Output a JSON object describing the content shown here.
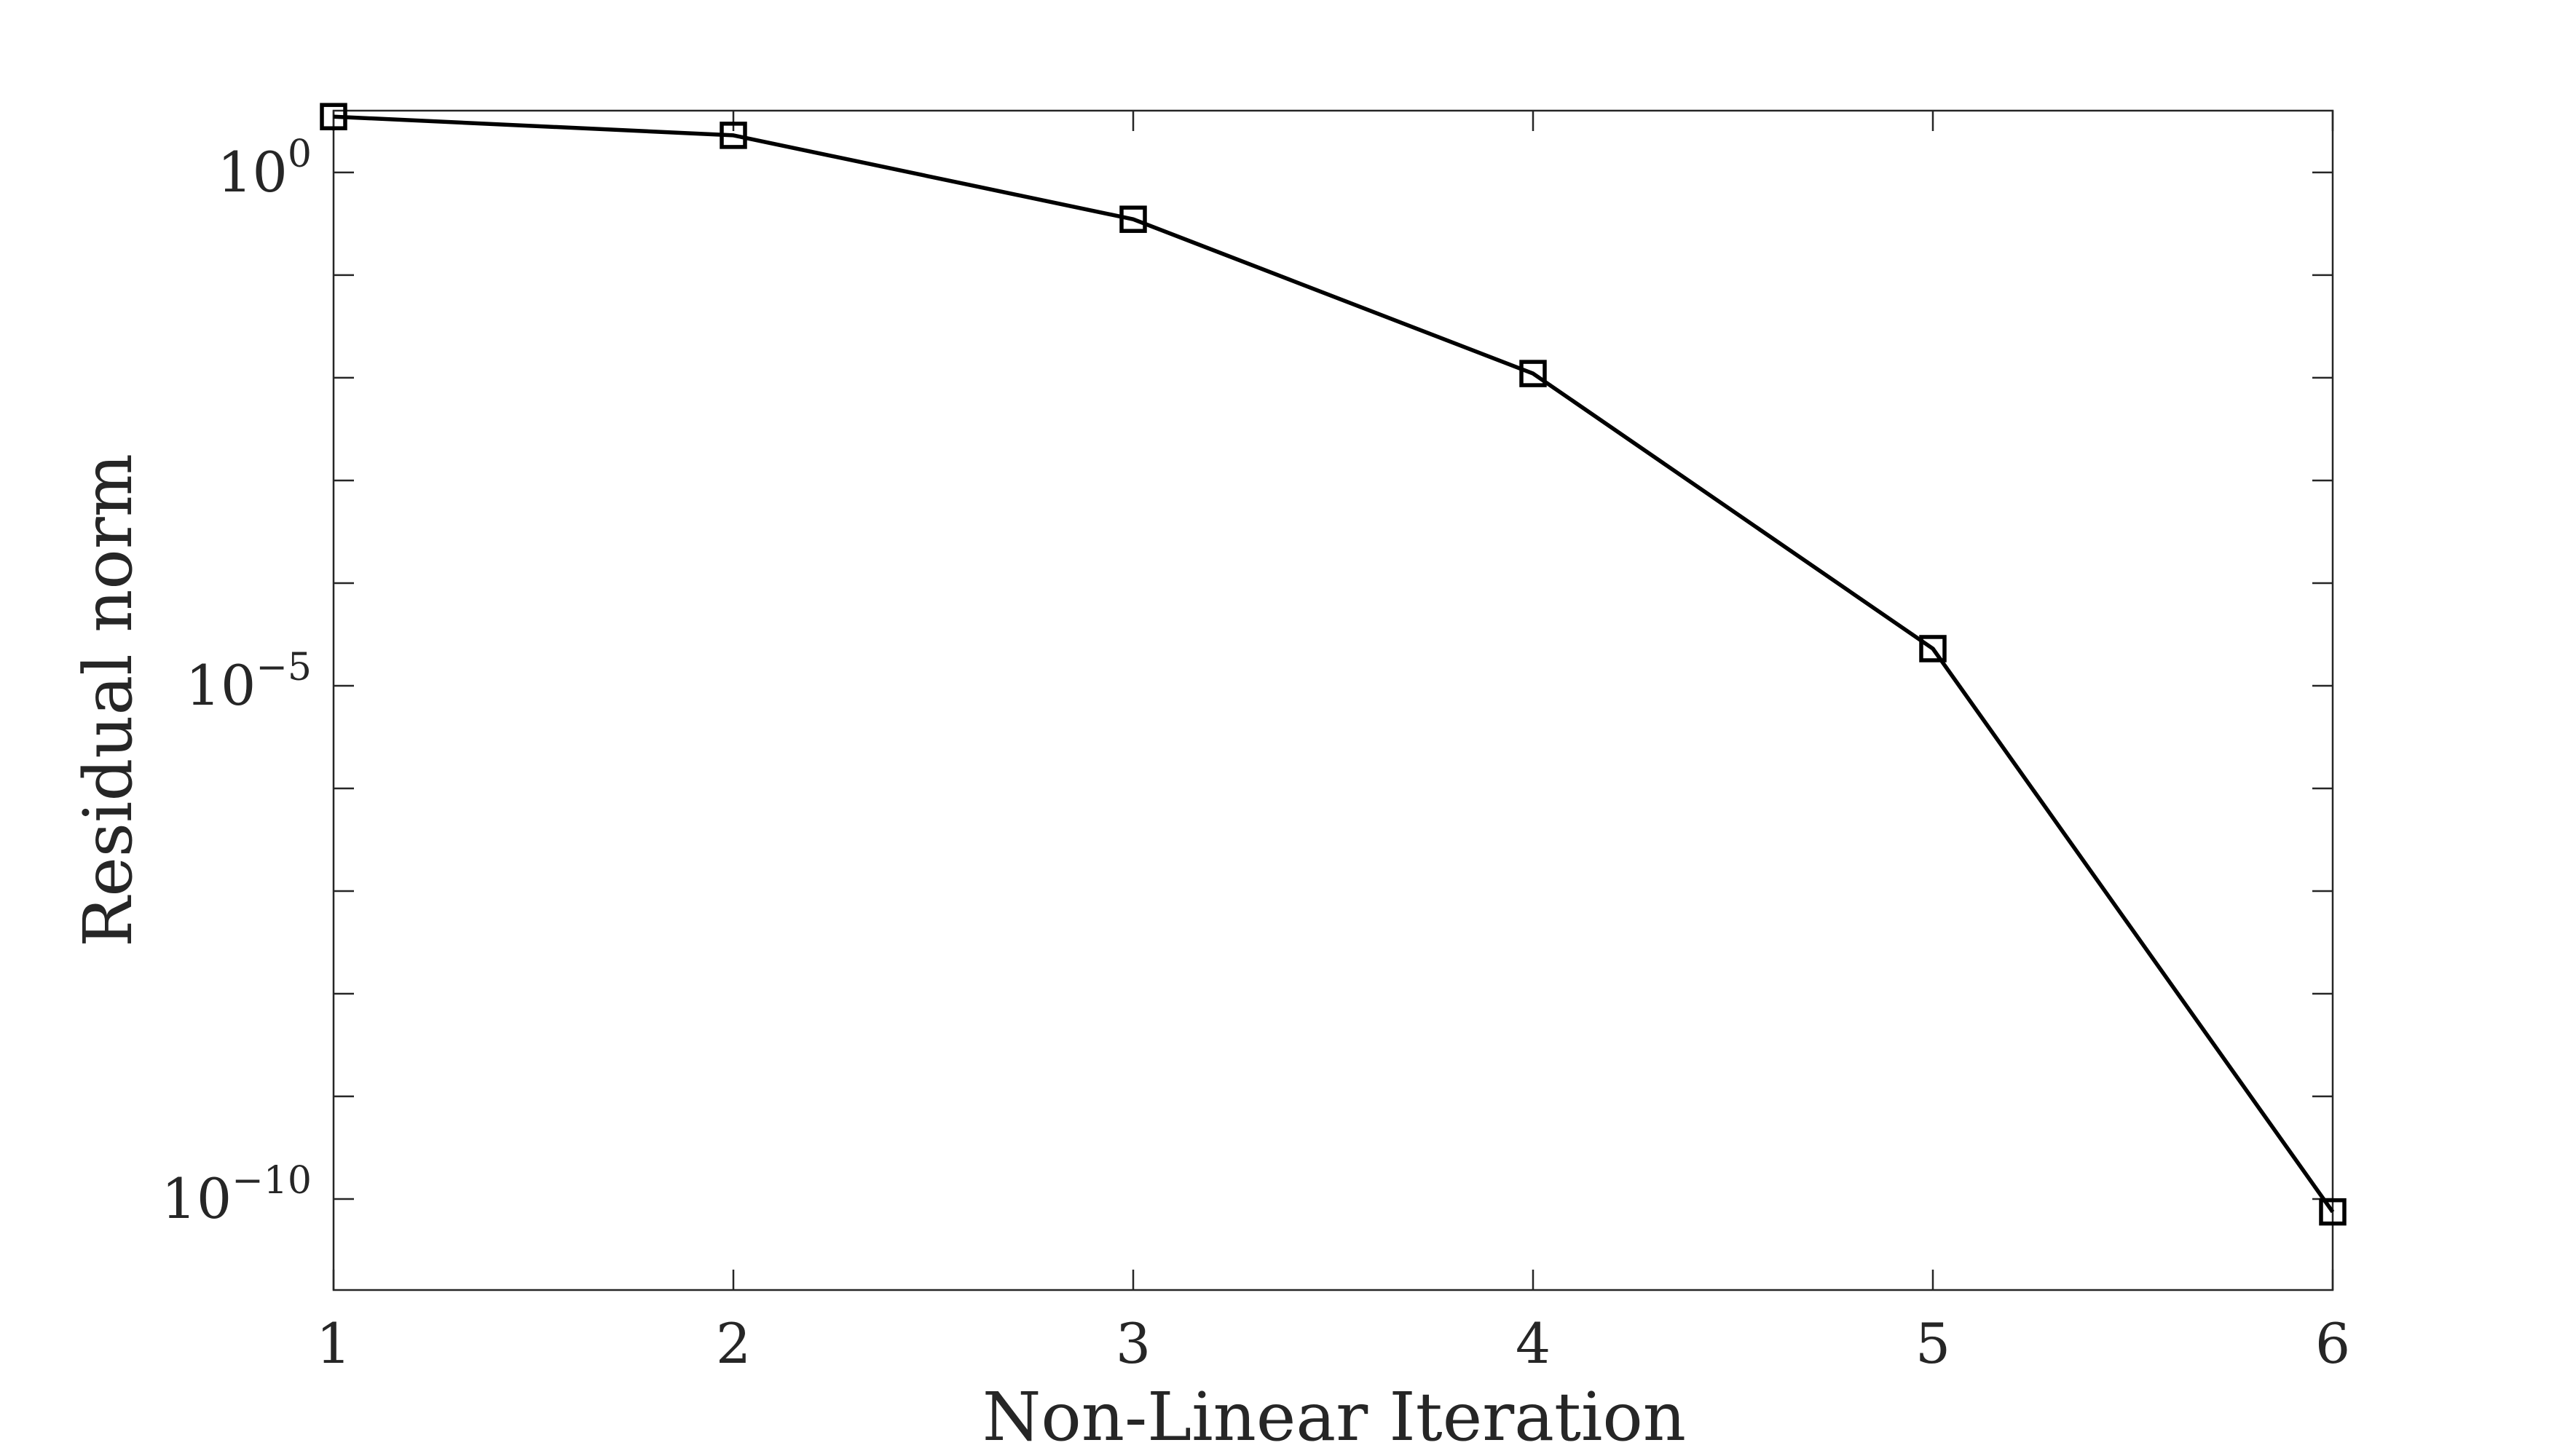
{
  "chart_data": {
    "type": "line",
    "title": "",
    "xlabel": "Non-Linear Iteration",
    "ylabel": "Residual norm",
    "y_scale": "log",
    "x": [
      1,
      2,
      3,
      4,
      5,
      6
    ],
    "xlim": [
      1,
      6
    ],
    "ylim": [
      1.3e-11,
      4
    ],
    "x_ticks": [
      "1",
      "2",
      "3",
      "4",
      "5",
      "6"
    ],
    "y_ticks": [
      {
        "value": 1,
        "base": "10",
        "exp": "0"
      },
      {
        "value": 1e-05,
        "base": "10",
        "exp": "−5"
      },
      {
        "value": 1e-10,
        "base": "10",
        "exp": "−10"
      }
    ],
    "grid": false,
    "legend": "none",
    "series": [
      {
        "values": [
          3.5,
          2.3,
          0.35,
          0.011,
          2.3e-05,
          7.5e-11
        ],
        "color": "#000000",
        "marker": "square"
      }
    ]
  }
}
